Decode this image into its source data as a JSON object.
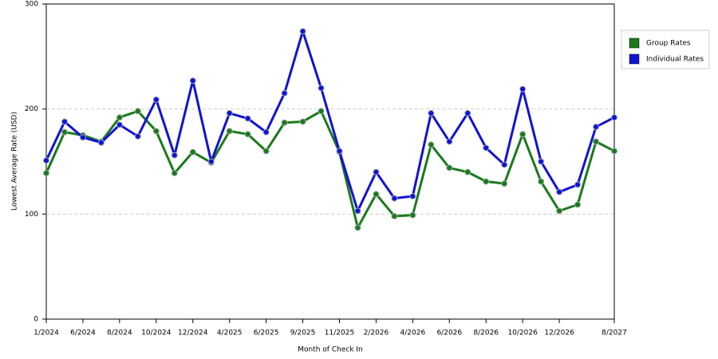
{
  "chart_data": {
    "type": "line",
    "x_label": "Month of Check In",
    "y_label": "Lowest Average Rate (USD)",
    "categories": [
      "1/2024",
      null,
      "6/2024",
      null,
      "8/2024",
      null,
      "10/2024",
      null,
      "12/2024",
      null,
      "4/2025",
      null,
      "6/2025",
      null,
      "9/2025",
      null,
      "11/2025",
      null,
      "2/2026",
      null,
      "4/2026",
      null,
      "6/2026",
      null,
      "8/2026",
      null,
      "10/2026",
      null,
      "12/2026",
      null,
      null,
      "8/2027"
    ],
    "series": [
      {
        "name": "Group Rates",
        "color": "#1a7a1a",
        "values": [
          139,
          178,
          175,
          169,
          192,
          198,
          179,
          139,
          159,
          149,
          179,
          176,
          160,
          187,
          188,
          198,
          159,
          87,
          119,
          98,
          99,
          166,
          144,
          140,
          131,
          129,
          176,
          131,
          103,
          109,
          169,
          160
        ]
      },
      {
        "name": "Individual Rates",
        "color": "#1212d4",
        "values": [
          151,
          188,
          173,
          168,
          185,
          174,
          209,
          156,
          227,
          150,
          196,
          191,
          178,
          215,
          274,
          220,
          160,
          103,
          140,
          115,
          117,
          196,
          169,
          196,
          163,
          147,
          219,
          150,
          121,
          128,
          183,
          192
        ]
      }
    ],
    "ylim": [
      0,
      300
    ],
    "yticks": [
      0,
      100,
      200,
      300
    ],
    "grid": true,
    "legend": "right"
  }
}
